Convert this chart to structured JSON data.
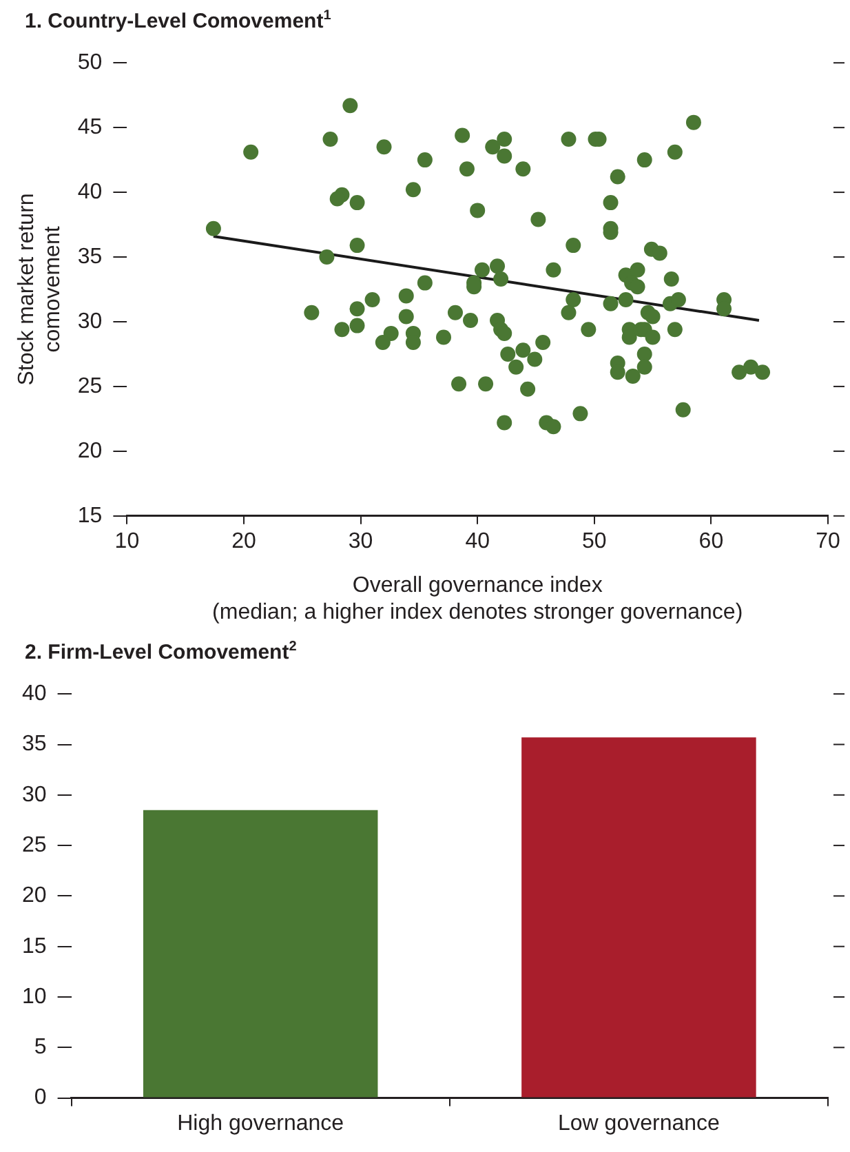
{
  "chart_data": [
    {
      "type": "scatter",
      "title": "1. Country-Level Comovement$^{1}$",
      "xlabel": "Overall governance index\n(median; a higher index denotes stronger governance)",
      "ylabel": "Stock market return\ncomovement",
      "xlim": [
        10,
        70
      ],
      "xticks": [
        10,
        20,
        30,
        40,
        50,
        60,
        70
      ],
      "ylim": [
        15,
        50
      ],
      "yticks": [
        15,
        20,
        25,
        30,
        35,
        40,
        45,
        50
      ],
      "grid": false,
      "legend": false,
      "marker": "circle",
      "series": [
        {
          "type": "scatter",
          "color": "#4a7733",
          "x": [
            17.4,
            20.6,
            29.1,
            27.4,
            28.4,
            28.0,
            29.7,
            29.7,
            27.1,
            31.0,
            29.7,
            25.8,
            29.7,
            28.4,
            32.0,
            35.5,
            38.7,
            41.3,
            42.3,
            42.3,
            39.1,
            43.9,
            34.5,
            40.0,
            45.2,
            47.8,
            48.2,
            40.4,
            41.7,
            42.0,
            39.7,
            39.7,
            46.5,
            35.5,
            33.9,
            33.9,
            38.1,
            39.4,
            41.7,
            42.0,
            42.3,
            32.6,
            31.9,
            34.5,
            34.5,
            37.1,
            45.6,
            42.6,
            43.9,
            44.9,
            43.3,
            48.2,
            47.8,
            49.5,
            38.4,
            40.7,
            44.3,
            42.3,
            45.9,
            46.5,
            48.8,
            50.1,
            50.4,
            58.5,
            56.9,
            54.3,
            52.0,
            51.4,
            51.4,
            51.4,
            54.9,
            55.6,
            52.7,
            53.7,
            53.2,
            53.7,
            56.6,
            51.4,
            52.7,
            54.6,
            55.0,
            56.5,
            57.2,
            61.1,
            61.1,
            53.0,
            53.0,
            54.0,
            54.3,
            55.0,
            56.9,
            52.0,
            52.0,
            53.3,
            54.3,
            54.3,
            62.4,
            63.4,
            64.4,
            57.6
          ],
          "values": [
            37.2,
            43.1,
            46.7,
            44.1,
            39.8,
            39.5,
            39.2,
            35.9,
            35.0,
            31.7,
            31.0,
            30.7,
            29.7,
            29.4,
            43.5,
            42.5,
            44.4,
            43.5,
            44.1,
            42.8,
            41.8,
            41.8,
            40.2,
            38.6,
            37.9,
            44.1,
            35.9,
            34.0,
            34.3,
            33.3,
            33.0,
            32.7,
            34.0,
            33.0,
            32.0,
            30.4,
            30.7,
            30.1,
            30.1,
            29.4,
            29.1,
            29.1,
            28.4,
            29.1,
            28.4,
            28.8,
            28.4,
            27.5,
            27.8,
            27.1,
            26.5,
            31.7,
            30.7,
            29.4,
            25.2,
            25.2,
            24.8,
            22.2,
            22.2,
            21.9,
            22.9,
            44.1,
            44.1,
            45.4,
            43.1,
            42.5,
            41.2,
            39.2,
            37.2,
            36.9,
            35.6,
            35.3,
            33.6,
            34.0,
            33.0,
            32.7,
            33.3,
            31.4,
            31.7,
            30.7,
            30.4,
            31.4,
            31.7,
            31.7,
            31.0,
            29.4,
            28.8,
            29.4,
            29.4,
            28.8,
            29.4,
            26.8,
            26.1,
            25.8,
            27.5,
            26.5,
            26.1,
            26.5,
            26.1,
            23.2
          ]
        },
        {
          "type": "line",
          "color": "#1a1a1a",
          "x": [
            17.4,
            64.1
          ],
          "values": [
            36.6,
            30.1
          ],
          "marker": "none"
        }
      ]
    },
    {
      "type": "bar",
      "title": "2. Firm-Level Comovement$^{2}$",
      "categories": [
        "High governance",
        "Low governance"
      ],
      "values": [
        28.5,
        35.7
      ],
      "colors": [
        "#4a7733",
        "#a91e2c"
      ],
      "ylim": [
        0,
        40
      ],
      "yticks": [
        0,
        5,
        10,
        15,
        20,
        25,
        30,
        35,
        40
      ],
      "grid": false,
      "legend": false
    }
  ]
}
